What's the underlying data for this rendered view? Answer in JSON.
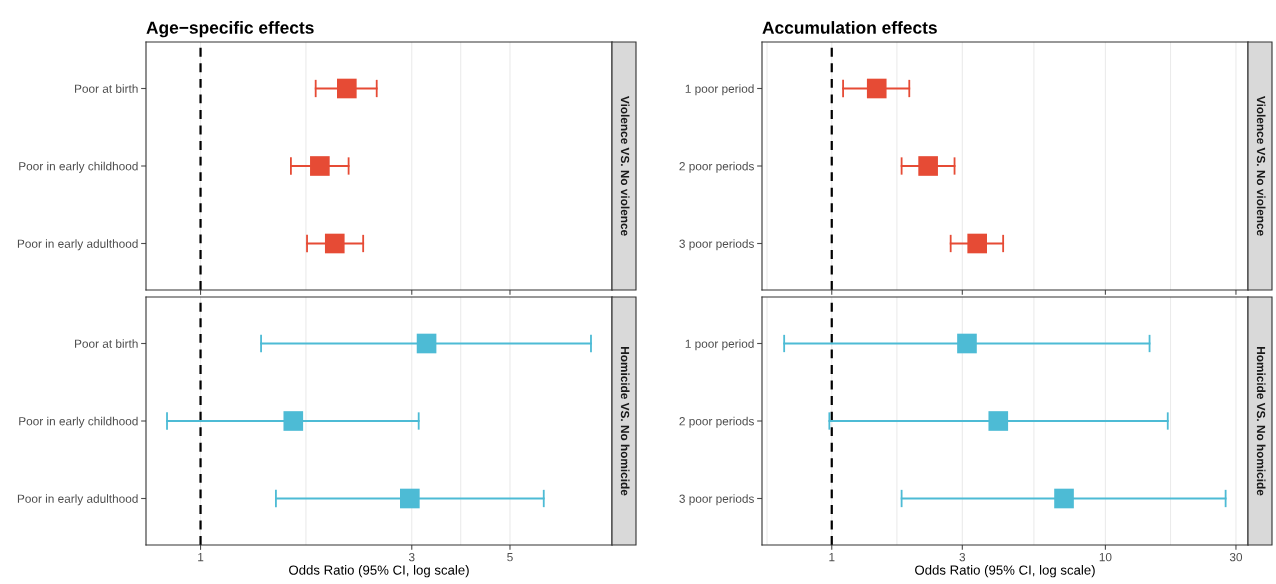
{
  "chart_data": [
    {
      "type": "scatter",
      "title": "Age−specific effects",
      "y2label": "Violence VS. No violence",
      "orientation": "horizontal",
      "categories": [
        "Poor at birth",
        "Poor in early childhood",
        "Poor in early adulthood"
      ],
      "series": [
        {
          "color": "#e64b35",
          "values": [
            2.14,
            1.86,
            2.01
          ],
          "errors": [
            [
              1.82,
              2.5
            ],
            [
              1.6,
              2.16
            ],
            [
              1.74,
              2.33
            ]
          ]
        }
      ],
      "xlim": [
        0.753,
        8.5
      ],
      "xticks": [
        1,
        {
          "value": 1.73,
          "label": null
        },
        3,
        {
          "value": 3.87,
          "label": null
        },
        5
      ],
      "log": "x",
      "grid": "x",
      "marker": "square",
      "tick_labels": "y",
      "ref_lines": [
        {
          "axis": "x",
          "value": 1,
          "color": "#000000",
          "line_style": "dashed"
        }
      ]
    },
    {
      "type": "scatter",
      "xlabel": "Odds Ratio (95% CI, log scale)",
      "y2label": "Homicide VS. No homicide",
      "orientation": "horizontal",
      "categories": [
        "Poor at birth",
        "Poor in early childhood",
        "Poor in early adulthood"
      ],
      "series": [
        {
          "color": "#4dbbd5",
          "values": [
            3.24,
            1.62,
            2.97
          ],
          "errors": [
            [
              1.37,
              7.62
            ],
            [
              0.84,
              3.11
            ],
            [
              1.48,
              5.96
            ]
          ]
        }
      ],
      "xlim": [
        0.753,
        8.5
      ],
      "xticks": [
        1,
        {
          "value": 1.73,
          "label": null
        },
        3,
        {
          "value": 3.87,
          "label": null
        },
        5
      ],
      "log": "x",
      "grid": "x",
      "marker": "square",
      "ref_lines": [
        {
          "axis": "x",
          "value": 1,
          "color": "#000000",
          "line_style": "dashed"
        }
      ]
    },
    {
      "type": "scatter",
      "title": "Accumulation effects",
      "y2label": "Violence VS. No violence",
      "orientation": "horizontal",
      "categories": [
        "1 poor period",
        "2 poor periods",
        "3 poor periods"
      ],
      "series": [
        {
          "color": "#e64b35",
          "values": [
            1.46,
            2.25,
            3.4
          ],
          "errors": [
            [
              1.1,
              1.92
            ],
            [
              1.8,
              2.81
            ],
            [
              2.72,
              4.23
            ]
          ]
        }
      ],
      "xlim": [
        0.556,
        33.2
      ],
      "xticks": [
        {
          "value": 0.58,
          "label": null
        },
        1,
        {
          "value": 1.73,
          "label": null
        },
        3,
        {
          "value": 5.48,
          "label": null
        },
        10,
        {
          "value": 17.3,
          "label": null
        },
        30
      ],
      "log": "x",
      "grid": "x",
      "marker": "square",
      "tick_labels": "y",
      "ref_lines": [
        {
          "axis": "x",
          "value": 1,
          "color": "#000000",
          "line_style": "dashed"
        }
      ]
    },
    {
      "type": "scatter",
      "xlabel": "Odds Ratio (95% CI, log scale)",
      "y2label": "Homicide VS. No homicide",
      "orientation": "horizontal",
      "categories": [
        "1 poor period",
        "2 poor periods",
        "3 poor periods"
      ],
      "series": [
        {
          "color": "#4dbbd5",
          "values": [
            3.12,
            4.06,
            7.06
          ],
          "errors": [
            [
              0.67,
              14.5
            ],
            [
              0.98,
              16.9
            ],
            [
              1.8,
              27.5
            ]
          ]
        }
      ],
      "xlim": [
        0.556,
        33.2
      ],
      "xticks": [
        {
          "value": 0.58,
          "label": null
        },
        1,
        {
          "value": 1.73,
          "label": null
        },
        3,
        {
          "value": 5.48,
          "label": null
        },
        10,
        {
          "value": 17.3,
          "label": null
        },
        30
      ],
      "log": "x",
      "grid": "x",
      "marker": "square",
      "ref_lines": [
        {
          "axis": "x",
          "value": 1,
          "color": "#000000",
          "line_style": "dashed"
        }
      ]
    }
  ]
}
